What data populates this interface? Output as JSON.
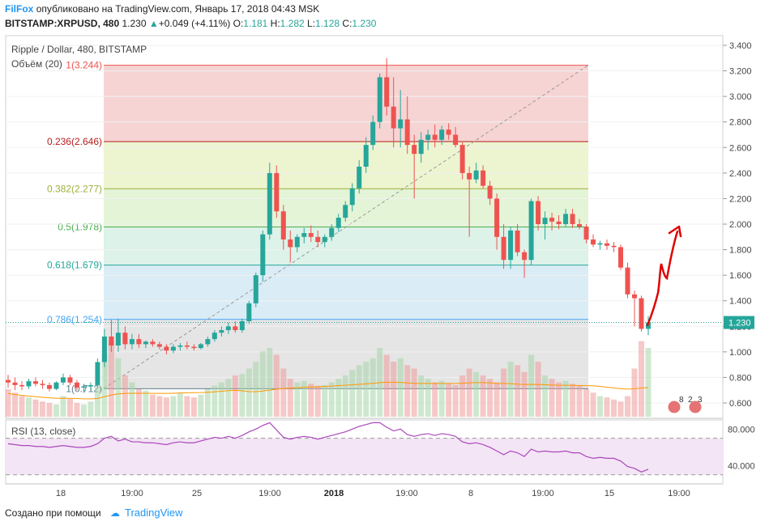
{
  "header": {
    "brand": "FilFox",
    "published_text": "опубликовано на TradingView.com, Январь 17, 2018 04:43 MSK",
    "symbol": "BITSTAMP:XRPUSD, 480",
    "last": "1.230",
    "change": "+0.049 (+4.11%)",
    "o_label": "O:",
    "o": "1.181",
    "h_label": "H:",
    "h": "1.282",
    "l_label": "L:",
    "l": "1.128",
    "c_label": "C:",
    "c": "1.230"
  },
  "legend": {
    "title": "Ripple / Dollar, 480, BITSTAMP",
    "volume": "Объём (20)",
    "rsi": "RSI (13, close)"
  },
  "footer": {
    "created_with": "Создано при помощи",
    "brand": "TradingView"
  },
  "colors": {
    "up": "#26a69a",
    "down": "#ef5350",
    "accent": "#2196f3",
    "annotation": "#e00000"
  },
  "chart_data": [
    {
      "type": "candlestick",
      "title": "Ripple / Dollar, 480, BITSTAMP",
      "ylim": [
        0.5,
        3.5
      ],
      "y_ticks": [
        "3.400",
        "3.200",
        "3.000",
        "2.800",
        "2.600",
        "2.400",
        "2.200",
        "2.000",
        "1.800",
        "1.600",
        "1.400",
        "1.200",
        "1.000",
        "0.800",
        "0.600"
      ],
      "x_ticks": [
        "18",
        "19:00",
        "25",
        "19:00",
        "2018",
        "19:00",
        "8",
        "19:00",
        "15",
        "19:00"
      ],
      "last_price": "1.230",
      "fibonacci": [
        {
          "label": "1(3.244)",
          "value": 3.244,
          "color": "#ef5350"
        },
        {
          "label": "0.236(2.646)",
          "value": 2.646,
          "color": "#b71c1c"
        },
        {
          "label": "0.382(2.277)",
          "value": 2.277,
          "color": "#9cb23a"
        },
        {
          "label": "0.5(1.978)",
          "value": 1.978,
          "color": "#4caf50"
        },
        {
          "label": "0.618(1.679)",
          "value": 1.679,
          "color": "#26a69a"
        },
        {
          "label": "0.786(1.254)",
          "value": 1.254,
          "color": "#42a5f5"
        },
        {
          "label": "1(0.712)",
          "value": 0.712,
          "color": "#607d8b"
        }
      ],
      "ohlc": [
        [
          0.78,
          0.82,
          0.72,
          0.76
        ],
        [
          0.76,
          0.8,
          0.7,
          0.74
        ],
        [
          0.74,
          0.77,
          0.7,
          0.73
        ],
        [
          0.73,
          0.79,
          0.71,
          0.77
        ],
        [
          0.77,
          0.8,
          0.73,
          0.75
        ],
        [
          0.75,
          0.78,
          0.71,
          0.74
        ],
        [
          0.74,
          0.76,
          0.69,
          0.71
        ],
        [
          0.71,
          0.77,
          0.7,
          0.76
        ],
        [
          0.76,
          0.83,
          0.74,
          0.8
        ],
        [
          0.8,
          0.82,
          0.74,
          0.76
        ],
        [
          0.76,
          0.78,
          0.7,
          0.72
        ],
        [
          0.72,
          0.75,
          0.68,
          0.73
        ],
        [
          0.73,
          0.76,
          0.7,
          0.74
        ],
        [
          0.74,
          0.95,
          0.73,
          0.92
        ],
        [
          0.92,
          1.18,
          0.88,
          1.12
        ],
        [
          1.12,
          1.25,
          1.0,
          1.05
        ],
        [
          1.05,
          1.26,
          1.0,
          1.15
        ],
        [
          1.15,
          1.2,
          1.02,
          1.06
        ],
        [
          1.06,
          1.14,
          1.02,
          1.1
        ],
        [
          1.1,
          1.14,
          1.03,
          1.06
        ],
        [
          1.06,
          1.09,
          1.03,
          1.08
        ],
        [
          1.08,
          1.1,
          1.04,
          1.06
        ],
        [
          1.06,
          1.08,
          1.02,
          1.04
        ],
        [
          1.04,
          1.06,
          0.98,
          1.01
        ],
        [
          1.01,
          1.06,
          0.99,
          1.04
        ],
        [
          1.04,
          1.07,
          1.01,
          1.05
        ],
        [
          1.05,
          1.08,
          1.02,
          1.04
        ],
        [
          1.04,
          1.06,
          1.01,
          1.03
        ],
        [
          1.03,
          1.07,
          1.02,
          1.06
        ],
        [
          1.06,
          1.12,
          1.04,
          1.1
        ],
        [
          1.1,
          1.17,
          1.08,
          1.15
        ],
        [
          1.15,
          1.2,
          1.12,
          1.17
        ],
        [
          1.17,
          1.23,
          1.14,
          1.2
        ],
        [
          1.2,
          1.24,
          1.15,
          1.17
        ],
        [
          1.17,
          1.26,
          1.15,
          1.24
        ],
        [
          1.24,
          1.4,
          1.22,
          1.38
        ],
        [
          1.38,
          1.62,
          1.35,
          1.6
        ],
        [
          1.6,
          1.95,
          1.55,
          1.92
        ],
        [
          1.92,
          2.48,
          1.88,
          2.4
        ],
        [
          2.4,
          2.46,
          2.05,
          2.1
        ],
        [
          2.1,
          2.15,
          1.8,
          1.88
        ],
        [
          1.88,
          1.95,
          1.7,
          1.82
        ],
        [
          1.82,
          1.92,
          1.78,
          1.9
        ],
        [
          1.9,
          1.97,
          1.85,
          1.93
        ],
        [
          1.93,
          1.99,
          1.86,
          1.9
        ],
        [
          1.9,
          1.95,
          1.82,
          1.86
        ],
        [
          1.86,
          1.92,
          1.82,
          1.9
        ],
        [
          1.9,
          2.0,
          1.87,
          1.97
        ],
        [
          1.97,
          2.08,
          1.94,
          2.05
        ],
        [
          2.05,
          2.18,
          2.02,
          2.15
        ],
        [
          2.15,
          2.32,
          2.1,
          2.28
        ],
        [
          2.28,
          2.5,
          2.24,
          2.45
        ],
        [
          2.45,
          2.68,
          2.4,
          2.62
        ],
        [
          2.62,
          2.85,
          2.58,
          2.8
        ],
        [
          2.8,
          3.18,
          2.75,
          3.15
        ],
        [
          3.15,
          3.3,
          2.85,
          2.92
        ],
        [
          2.92,
          3.15,
          2.6,
          2.75
        ],
        [
          2.75,
          3.05,
          2.6,
          2.82
        ],
        [
          2.82,
          3.0,
          2.55,
          2.62
        ],
        [
          2.62,
          2.7,
          2.2,
          2.55
        ],
        [
          2.55,
          2.72,
          2.48,
          2.66
        ],
        [
          2.66,
          2.74,
          2.58,
          2.7
        ],
        [
          2.7,
          2.78,
          2.6,
          2.66
        ],
        [
          2.66,
          2.77,
          2.62,
          2.74
        ],
        [
          2.74,
          2.79,
          2.66,
          2.7
        ],
        [
          2.7,
          2.76,
          2.6,
          2.62
        ],
        [
          2.62,
          2.65,
          2.35,
          2.4
        ],
        [
          2.4,
          2.45,
          1.9,
          2.35
        ],
        [
          2.35,
          2.48,
          2.32,
          2.42
        ],
        [
          2.42,
          2.46,
          2.28,
          2.3
        ],
        [
          2.3,
          2.34,
          2.15,
          2.2
        ],
        [
          2.2,
          2.24,
          1.8,
          1.9
        ],
        [
          1.9,
          2.0,
          1.65,
          1.72
        ],
        [
          1.72,
          1.98,
          1.65,
          1.95
        ],
        [
          1.95,
          2.0,
          1.75,
          1.78
        ],
        [
          1.78,
          1.8,
          1.58,
          1.72
        ],
        [
          1.72,
          2.2,
          1.68,
          2.18
        ],
        [
          2.18,
          2.22,
          1.95,
          2.0
        ],
        [
          2.0,
          2.1,
          1.88,
          2.05
        ],
        [
          2.05,
          2.09,
          1.95,
          2.02
        ],
        [
          2.02,
          2.07,
          1.96,
          2.0
        ],
        [
          2.0,
          2.12,
          1.98,
          2.08
        ],
        [
          2.08,
          2.12,
          1.97,
          2.0
        ],
        [
          2.0,
          2.04,
          1.96,
          1.98
        ],
        [
          1.98,
          2.0,
          1.85,
          1.88
        ],
        [
          1.88,
          1.92,
          1.82,
          1.84
        ],
        [
          1.84,
          1.87,
          1.8,
          1.85
        ],
        [
          1.85,
          1.88,
          1.8,
          1.83
        ],
        [
          1.83,
          1.86,
          1.78,
          1.82
        ],
        [
          1.82,
          1.84,
          1.64,
          1.66
        ],
        [
          1.66,
          1.7,
          1.42,
          1.45
        ],
        [
          1.45,
          1.48,
          1.2,
          1.42
        ],
        [
          1.42,
          1.44,
          1.16,
          1.18
        ],
        [
          1.18,
          1.28,
          1.13,
          1.23
        ]
      ],
      "annotation": "handwritten red arrow pointing up toward 2.000"
    },
    {
      "type": "bar",
      "title": "Объём (20)",
      "values": [
        40,
        35,
        30,
        28,
        25,
        22,
        20,
        18,
        30,
        26,
        20,
        18,
        22,
        45,
        90,
        110,
        85,
        60,
        50,
        40,
        38,
        32,
        30,
        28,
        30,
        35,
        30,
        28,
        32,
        40,
        45,
        50,
        55,
        60,
        62,
        70,
        80,
        95,
        100,
        90,
        70,
        55,
        50,
        52,
        48,
        45,
        46,
        50,
        55,
        60,
        68,
        75,
        80,
        85,
        100,
        90,
        80,
        85,
        75,
        70,
        60,
        55,
        50,
        52,
        48,
        46,
        60,
        70,
        65,
        60,
        55,
        50,
        70,
        80,
        75,
        65,
        90,
        80,
        60,
        55,
        50,
        52,
        48,
        45,
        40,
        35,
        30,
        28,
        25,
        22,
        30,
        70,
        110,
        100
      ],
      "ma": "orange line"
    },
    {
      "type": "line",
      "title": "RSI (13, close)",
      "ylim": [
        20,
        90
      ],
      "y_ticks": [
        "80.000",
        "40.000"
      ],
      "values": [
        64,
        63,
        62,
        62,
        61,
        61,
        60,
        61,
        62,
        61,
        60,
        60,
        61,
        64,
        70,
        72,
        67,
        69,
        66,
        66,
        65,
        65,
        64,
        63,
        65,
        66,
        65,
        65,
        67,
        69,
        71,
        70,
        72,
        70,
        73,
        77,
        80,
        84,
        87,
        79,
        71,
        69,
        71,
        72,
        71,
        69,
        71,
        73,
        75,
        77,
        80,
        83,
        85,
        87,
        87,
        82,
        78,
        80,
        74,
        72,
        74,
        75,
        73,
        75,
        74,
        72,
        66,
        64,
        65,
        63,
        60,
        56,
        52,
        56,
        54,
        50,
        58,
        55,
        56,
        55,
        55,
        56,
        54,
        54,
        50,
        48,
        49,
        48,
        48,
        45,
        39,
        37,
        33,
        36
      ]
    }
  ]
}
